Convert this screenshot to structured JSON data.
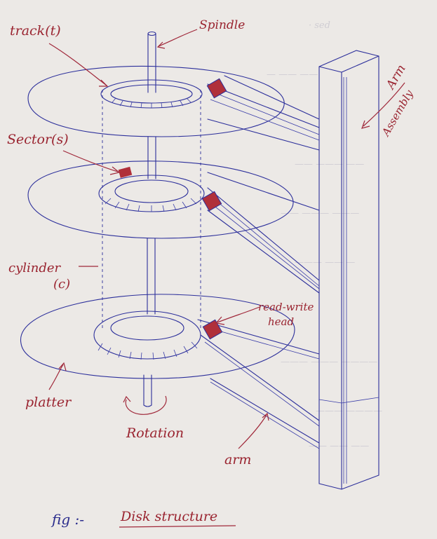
{
  "figure": {
    "caption_prefix": "fig :-",
    "caption_title": "Disk structure"
  },
  "labels": {
    "track": "track(t)",
    "spindle": "Spindle",
    "arm_assembly_line1": "Arm",
    "arm_assembly_line2": "Assembly",
    "sector": "Sector(s)",
    "cylinder_line1": "cylinder",
    "cylinder_line2": "(c)",
    "read_write_line1": "read-write",
    "read_write_line2": "head",
    "platter": "platter",
    "rotation": "Rotation",
    "arm": "arm"
  },
  "colors": {
    "ink_blue": "#2c2f9b",
    "ink_red": "#9a2430",
    "head_fill": "#b0303a",
    "paper": "#ece9e6"
  }
}
